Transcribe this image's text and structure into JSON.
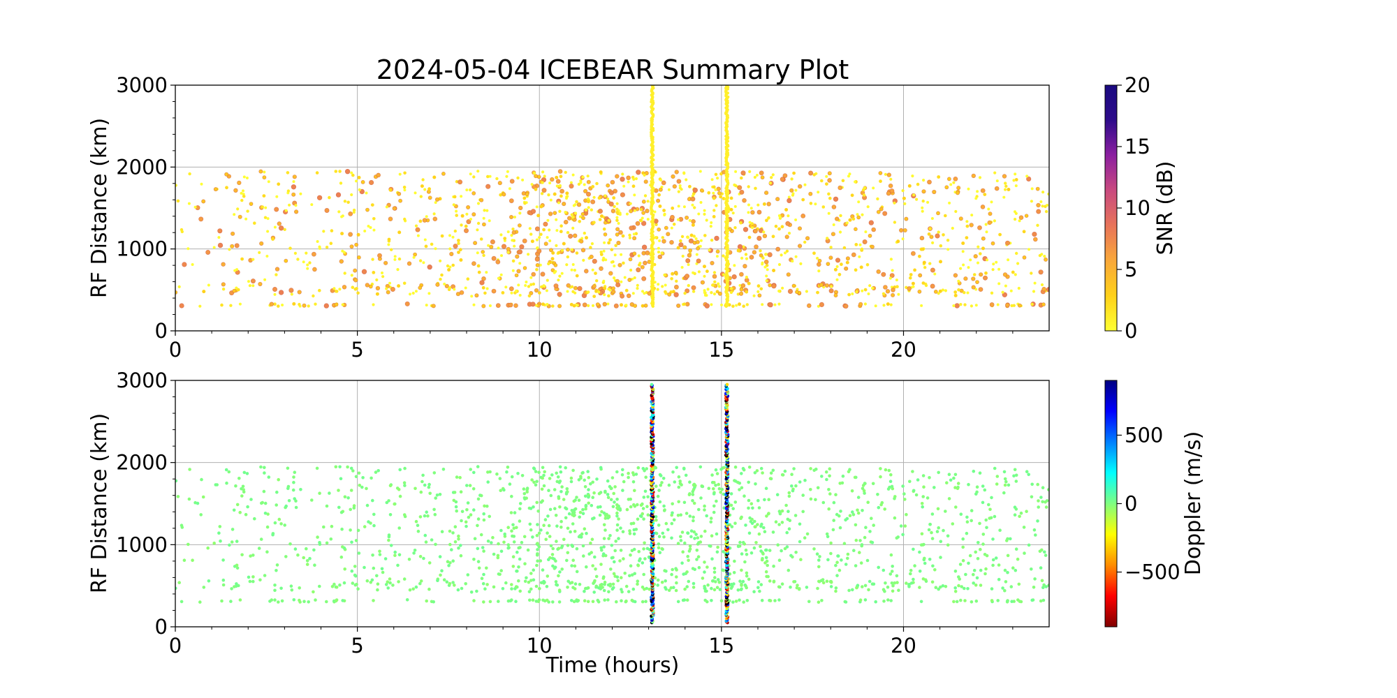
{
  "title": "2024-05-04 ICEBEAR Summary Plot",
  "colors": {
    "grid": "#b0b0b0",
    "axis": "#000000",
    "background": "#ffffff",
    "snr_colormap": [
      "#ffff33",
      "#ffd11a",
      "#f9a83a",
      "#e8745a",
      "#c94a7f",
      "#8c1fa0",
      "#2e0b8a",
      "#1a0a80"
    ],
    "doppler_colormap": [
      "#800000",
      "#ff0000",
      "#ff8c00",
      "#ffff00",
      "#80ff80",
      "#00ffff",
      "#0080ff",
      "#0000ff",
      "#000080"
    ]
  },
  "chart_data": [
    {
      "type": "scatter",
      "name": "snr-panel",
      "title": "2024-05-04 ICEBEAR Summary Plot",
      "xlabel": "",
      "ylabel": "RF Distance (km)",
      "xlim": [
        0,
        24
      ],
      "ylim": [
        0,
        3000
      ],
      "xticks": [
        "0",
        "5",
        "10",
        "15",
        "20"
      ],
      "yticks": [
        "0",
        "1000",
        "2000",
        "3000"
      ],
      "grid": true,
      "colorbar": {
        "label": "SNR (dB)",
        "range": [
          0,
          20
        ],
        "ticks": [
          "0",
          "5",
          "10",
          "15",
          "20"
        ]
      },
      "dominant_snr_range_db": [
        0,
        7
      ],
      "vertical_bands": [
        {
          "x_hours": 13.1,
          "y_range_km": [
            300,
            3000
          ],
          "snr_db": 1
        },
        {
          "x_hours": 15.15,
          "y_range_km": [
            300,
            3000
          ],
          "snr_db": 1
        }
      ],
      "activity_profile": {
        "x_hours": [
          0,
          2,
          4,
          6,
          8,
          9,
          10,
          11,
          12,
          13,
          14,
          15,
          16,
          17,
          18,
          19,
          20,
          21,
          22,
          23,
          24
        ],
        "relative_density": [
          0.25,
          0.3,
          0.3,
          0.35,
          0.5,
          0.75,
          0.95,
          1.0,
          1.0,
          1.0,
          1.0,
          0.95,
          0.8,
          0.7,
          0.6,
          0.55,
          0.5,
          0.5,
          0.45,
          0.45,
          0.4
        ],
        "y_range_km": [
          300,
          1950
        ]
      }
    },
    {
      "type": "scatter",
      "name": "doppler-panel",
      "title": "",
      "xlabel": "Time (hours)",
      "ylabel": "RF Distance (km)",
      "xlim": [
        0,
        24
      ],
      "ylim": [
        0,
        3000
      ],
      "xticks": [
        "0",
        "5",
        "10",
        "15",
        "20"
      ],
      "yticks": [
        "0",
        "1000",
        "2000",
        "3000"
      ],
      "grid": true,
      "colorbar": {
        "label": "Doppler (m/s)",
        "range": [
          -900,
          900
        ],
        "ticks": [
          "−500",
          "0",
          "500"
        ],
        "tick_values": [
          -500,
          0,
          500
        ]
      },
      "dominant_doppler_ms": 0,
      "vertical_bands": [
        {
          "x_hours": 13.1,
          "y_range_km": [
            50,
            2950
          ],
          "doppler_range_ms": [
            -900,
            900
          ]
        },
        {
          "x_hours": 15.15,
          "y_range_km": [
            50,
            2950
          ],
          "doppler_range_ms": [
            -900,
            900
          ]
        }
      ]
    }
  ]
}
